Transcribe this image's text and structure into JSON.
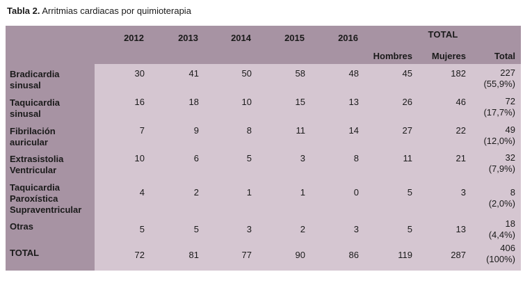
{
  "caption": {
    "label": "Tabla 2.",
    "text": " Arritmias cardiacas por quimioterapia"
  },
  "table": {
    "years": [
      "2012",
      "2013",
      "2014",
      "2015",
      "2016"
    ],
    "total_header": "TOTAL",
    "total_subheaders": [
      "Hombres",
      "Mujeres",
      "Total"
    ],
    "rows": [
      {
        "label_lines": [
          "Bradicardia",
          "sinusal"
        ],
        "values": [
          "30",
          "41",
          "50",
          "58",
          "48"
        ],
        "hombres": "45",
        "mujeres": "182",
        "total": "227",
        "pct": "(55,9%)"
      },
      {
        "label_lines": [
          "Taquicardia",
          "sinusal"
        ],
        "values": [
          "16",
          "18",
          "10",
          "15",
          "13"
        ],
        "hombres": "26",
        "mujeres": "46",
        "total": "72",
        "pct": "(17,7%)"
      },
      {
        "label_lines": [
          "Fibrilación",
          "auricular"
        ],
        "values": [
          "7",
          "9",
          "8",
          "11",
          "14"
        ],
        "hombres": "27",
        "mujeres": "22",
        "total": "49",
        "pct": "(12,0%)"
      },
      {
        "label_lines": [
          "Extrasistolia",
          "Ventricular"
        ],
        "values": [
          "10",
          "6",
          "5",
          "3",
          "8"
        ],
        "hombres": "11",
        "mujeres": "21",
        "total": "32",
        "pct": "(7,9%)"
      },
      {
        "label_lines": [
          "Taquicardia",
          "Paroxística",
          "Supraventricular"
        ],
        "values": [
          "4",
          "2",
          "1",
          "1",
          "0"
        ],
        "hombres": "5",
        "mujeres": "3",
        "total": "8",
        "pct": "(2,0%)"
      },
      {
        "label_lines": [
          "Otras"
        ],
        "values": [
          "5",
          "5",
          "3",
          "2",
          "3"
        ],
        "hombres": "5",
        "mujeres": "13",
        "total": "18",
        "pct": "(4,4%)"
      },
      {
        "label_lines": [
          "TOTAL"
        ],
        "values": [
          "72",
          "81",
          "77",
          "90",
          "86"
        ],
        "hombres": "119",
        "mujeres": "287",
        "total": "406",
        "pct": "(100%)"
      }
    ]
  }
}
